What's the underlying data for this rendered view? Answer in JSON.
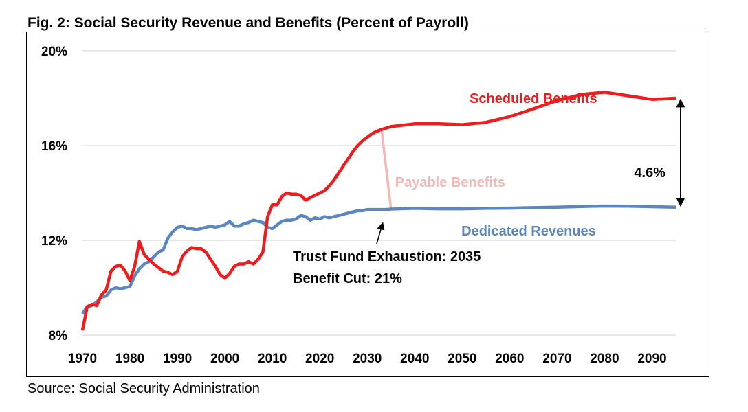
{
  "figure": {
    "title": "Fig. 2: Social Security Revenue and Benefits (Percent of Payroll)",
    "source": "Source: Social Security Administration"
  },
  "colors": {
    "scheduled": "#ee1c1c",
    "revenues": "#5b86c0",
    "payable": "#f7b6b6",
    "gap_arrow": "#000000"
  },
  "chart_data": {
    "type": "line",
    "title": "Fig. 2: Social Security Revenue and Benefits (Percent of Payroll)",
    "xlabel": "",
    "ylabel": "",
    "xlim": [
      1970,
      2095
    ],
    "ylim": [
      8,
      20
    ],
    "x_ticks": [
      1970,
      1980,
      1990,
      2000,
      2010,
      2020,
      2030,
      2040,
      2050,
      2060,
      2070,
      2080,
      2090
    ],
    "y_ticks": [
      8,
      12,
      16,
      20
    ],
    "y_tick_format": "percent",
    "grid": "horizontal",
    "legend": "none (series labeled directly)",
    "series": [
      {
        "name": "Scheduled Benefits",
        "color": "#ee1c1c",
        "points": [
          [
            1970,
            8.2
          ],
          [
            1971,
            9.2
          ],
          [
            1972,
            9.3
          ],
          [
            1973,
            9.25
          ],
          [
            1974,
            9.7
          ],
          [
            1975,
            9.9
          ],
          [
            1976,
            10.7
          ],
          [
            1977,
            10.9
          ],
          [
            1978,
            10.95
          ],
          [
            1979,
            10.7
          ],
          [
            1980,
            10.3
          ],
          [
            1981,
            10.9
          ],
          [
            1982,
            11.95
          ],
          [
            1983,
            11.4
          ],
          [
            1984,
            11.2
          ],
          [
            1985,
            11.0
          ],
          [
            1986,
            10.85
          ],
          [
            1987,
            10.7
          ],
          [
            1988,
            10.65
          ],
          [
            1989,
            10.55
          ],
          [
            1990,
            10.7
          ],
          [
            1991,
            11.3
          ],
          [
            1992,
            11.55
          ],
          [
            1993,
            11.7
          ],
          [
            1994,
            11.65
          ],
          [
            1995,
            11.65
          ],
          [
            1996,
            11.5
          ],
          [
            1997,
            11.2
          ],
          [
            1998,
            10.9
          ],
          [
            1999,
            10.55
          ],
          [
            2000,
            10.4
          ],
          [
            2001,
            10.6
          ],
          [
            2002,
            10.9
          ],
          [
            2003,
            11.0
          ],
          [
            2004,
            11.0
          ],
          [
            2005,
            11.1
          ],
          [
            2006,
            11.0
          ],
          [
            2007,
            11.2
          ],
          [
            2008,
            11.5
          ],
          [
            2009,
            13.0
          ],
          [
            2010,
            13.5
          ],
          [
            2011,
            13.5
          ],
          [
            2012,
            13.85
          ],
          [
            2013,
            14.0
          ],
          [
            2014,
            13.95
          ],
          [
            2015,
            13.95
          ],
          [
            2016,
            13.9
          ],
          [
            2017,
            13.7
          ],
          [
            2018,
            13.8
          ],
          [
            2019,
            13.9
          ],
          [
            2020,
            14.0
          ],
          [
            2021,
            14.1
          ],
          [
            2022,
            14.3
          ],
          [
            2023,
            14.55
          ],
          [
            2024,
            14.85
          ],
          [
            2025,
            15.15
          ],
          [
            2026,
            15.45
          ],
          [
            2027,
            15.75
          ],
          [
            2028,
            16.0
          ],
          [
            2029,
            16.2
          ],
          [
            2030,
            16.35
          ],
          [
            2031,
            16.5
          ],
          [
            2032,
            16.6
          ],
          [
            2033,
            16.68
          ],
          [
            2034,
            16.74
          ],
          [
            2035,
            16.8
          ],
          [
            2040,
            16.92
          ],
          [
            2045,
            16.92
          ],
          [
            2050,
            16.88
          ],
          [
            2055,
            16.98
          ],
          [
            2060,
            17.22
          ],
          [
            2065,
            17.55
          ],
          [
            2070,
            17.9
          ],
          [
            2075,
            18.15
          ],
          [
            2080,
            18.25
          ],
          [
            2085,
            18.1
          ],
          [
            2090,
            17.95
          ],
          [
            2095,
            18.0
          ]
        ]
      },
      {
        "name": "Dedicated Revenues",
        "color": "#5b86c0",
        "points": [
          [
            1970,
            8.9
          ],
          [
            1971,
            9.2
          ],
          [
            1972,
            9.25
          ],
          [
            1973,
            9.4
          ],
          [
            1974,
            9.6
          ],
          [
            1975,
            9.65
          ],
          [
            1976,
            9.9
          ],
          [
            1977,
            10.0
          ],
          [
            1978,
            9.95
          ],
          [
            1979,
            10.0
          ],
          [
            1980,
            10.05
          ],
          [
            1981,
            10.5
          ],
          [
            1982,
            10.8
          ],
          [
            1983,
            11.0
          ],
          [
            1984,
            11.1
          ],
          [
            1985,
            11.3
          ],
          [
            1986,
            11.5
          ],
          [
            1987,
            11.6
          ],
          [
            1988,
            12.1
          ],
          [
            1989,
            12.35
          ],
          [
            1990,
            12.55
          ],
          [
            1991,
            12.6
          ],
          [
            1992,
            12.5
          ],
          [
            1993,
            12.5
          ],
          [
            1994,
            12.45
          ],
          [
            1995,
            12.5
          ],
          [
            1996,
            12.55
          ],
          [
            1997,
            12.6
          ],
          [
            1998,
            12.55
          ],
          [
            1999,
            12.6
          ],
          [
            2000,
            12.65
          ],
          [
            2001,
            12.8
          ],
          [
            2002,
            12.6
          ],
          [
            2003,
            12.6
          ],
          [
            2004,
            12.7
          ],
          [
            2005,
            12.75
          ],
          [
            2006,
            12.85
          ],
          [
            2007,
            12.8
          ],
          [
            2008,
            12.75
          ],
          [
            2009,
            12.55
          ],
          [
            2010,
            12.5
          ],
          [
            2011,
            12.65
          ],
          [
            2012,
            12.8
          ],
          [
            2013,
            12.85
          ],
          [
            2014,
            12.85
          ],
          [
            2015,
            12.9
          ],
          [
            2016,
            13.05
          ],
          [
            2017,
            13.0
          ],
          [
            2018,
            12.85
          ],
          [
            2019,
            12.95
          ],
          [
            2020,
            12.9
          ],
          [
            2021,
            13.0
          ],
          [
            2022,
            12.95
          ],
          [
            2023,
            13.0
          ],
          [
            2024,
            13.05
          ],
          [
            2025,
            13.1
          ],
          [
            2026,
            13.15
          ],
          [
            2027,
            13.2
          ],
          [
            2028,
            13.25
          ],
          [
            2029,
            13.25
          ],
          [
            2030,
            13.3
          ],
          [
            2031,
            13.3
          ],
          [
            2032,
            13.3
          ],
          [
            2033,
            13.3
          ],
          [
            2034,
            13.3
          ],
          [
            2035,
            13.32
          ],
          [
            2040,
            13.35
          ],
          [
            2045,
            13.33
          ],
          [
            2050,
            13.33
          ],
          [
            2055,
            13.35
          ],
          [
            2060,
            13.36
          ],
          [
            2065,
            13.38
          ],
          [
            2070,
            13.4
          ],
          [
            2075,
            13.43
          ],
          [
            2080,
            13.45
          ],
          [
            2085,
            13.44
          ],
          [
            2090,
            13.42
          ],
          [
            2095,
            13.4
          ]
        ]
      },
      {
        "name": "Payable Benefits",
        "color": "#f7b6b6",
        "points": [
          [
            2033,
            16.68
          ],
          [
            2035,
            13.32
          ]
        ]
      }
    ],
    "labels": {
      "scheduled": "Scheduled Benefits",
      "payable": "Payable Benefits",
      "revenues": "Dedicated Revenues",
      "exhaustion": "Trust Fund Exhaustion: 2035",
      "cut": "Benefit Cut: 21%",
      "gap": "4.6%"
    },
    "annotations": {
      "exhaustion_year": 2035,
      "exhaustion_level": 13.32,
      "gap_year": 2096,
      "gap_top": 18.0,
      "gap_bottom": 13.4
    }
  }
}
